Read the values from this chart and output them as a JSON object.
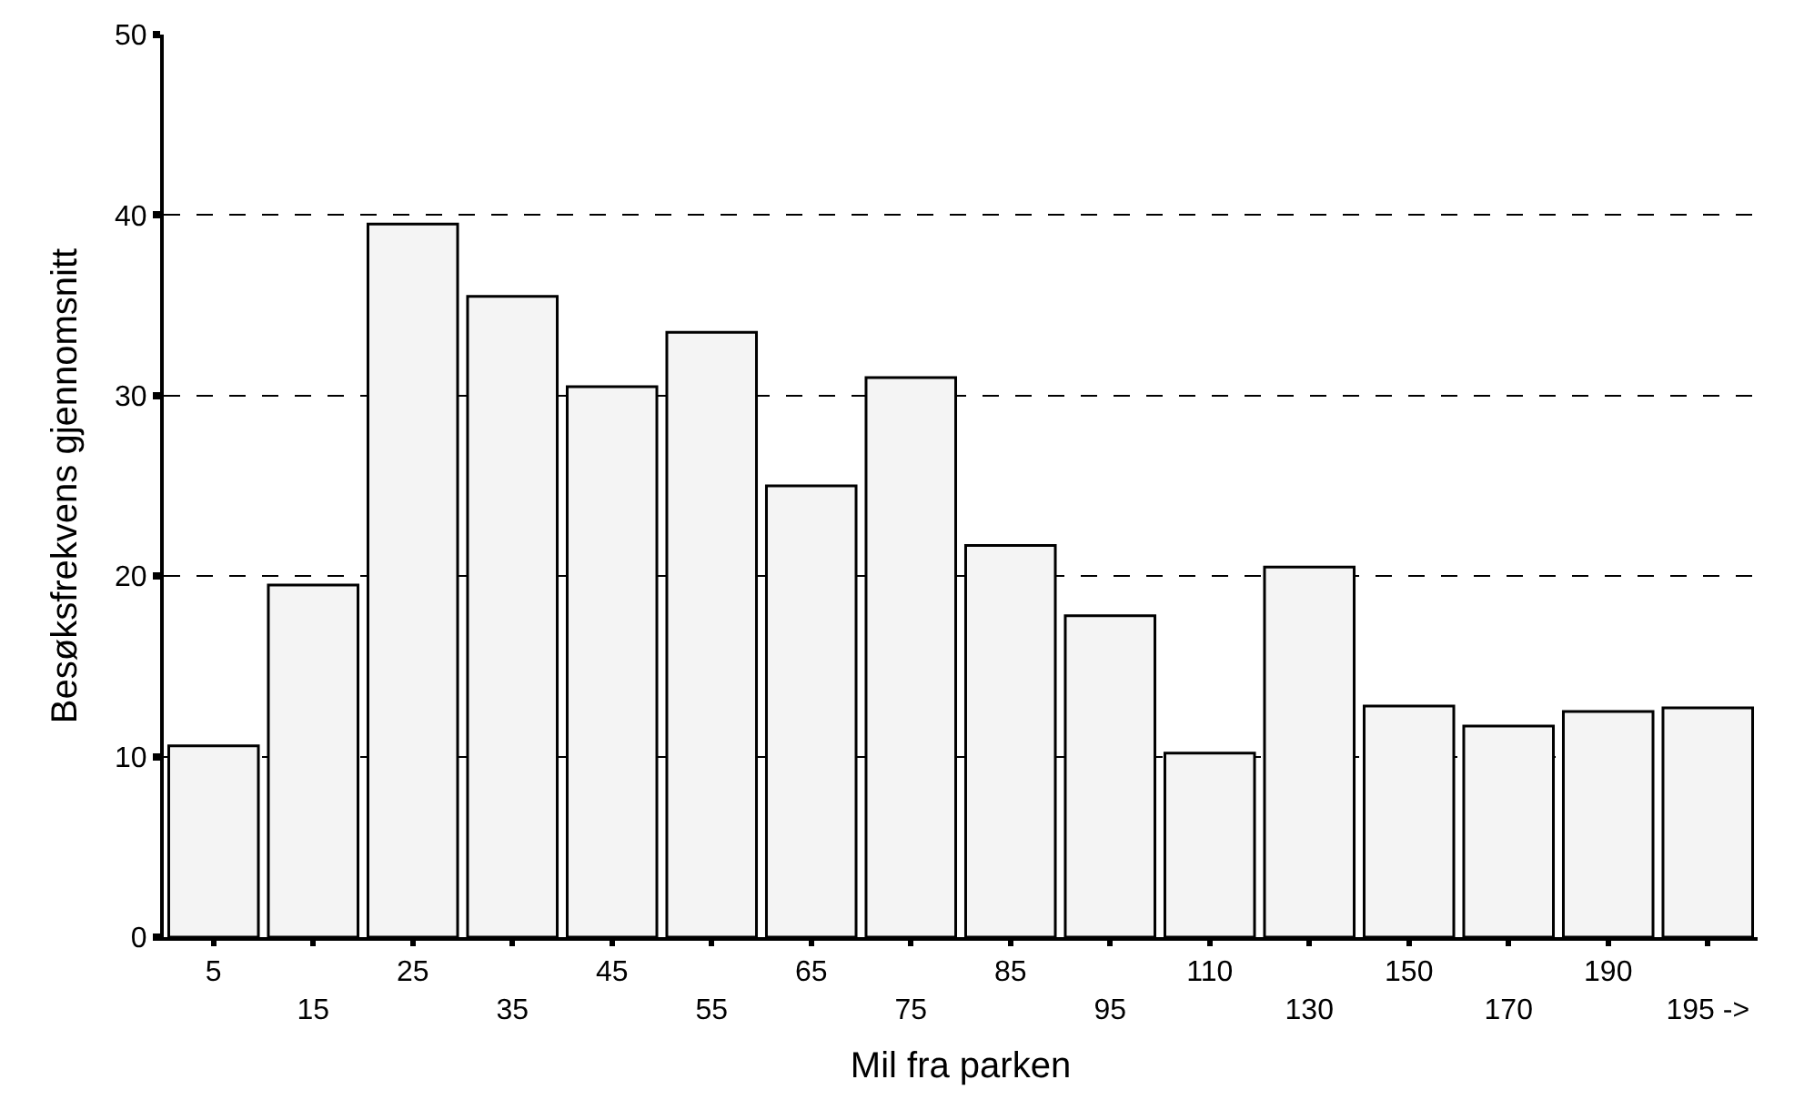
{
  "chart_data": {
    "type": "bar",
    "xlabel": "Mil fra parken",
    "ylabel": "Besøksfrekvens gjennomsnitt",
    "categories": [
      "5",
      "15",
      "25",
      "35",
      "45",
      "55",
      "65",
      "75",
      "85",
      "95",
      "110",
      "130",
      "150",
      "170",
      "190",
      "195 ->"
    ],
    "values": [
      10.6,
      19.5,
      39.5,
      35.5,
      30.5,
      33.5,
      25.0,
      31.0,
      21.7,
      17.8,
      10.2,
      20.5,
      12.8,
      11.7,
      12.5,
      12.7
    ],
    "color": "#f4f4f4",
    "ylim": [
      0,
      50
    ],
    "yticks": [
      0,
      10,
      20,
      30,
      40,
      50
    ],
    "grid": "y",
    "line_style": "dashed",
    "legend": false
  }
}
